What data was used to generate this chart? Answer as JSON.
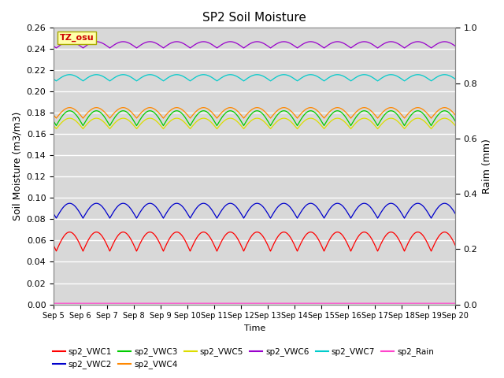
{
  "title": "SP2 Soil Moisture",
  "xlabel": "Time",
  "ylabel_left": "Soil Moisture (m3/m3)",
  "ylabel_right": "Raim (mm)",
  "xlim_days": [
    0,
    15
  ],
  "ylim_left": [
    0.0,
    0.26
  ],
  "ylim_right": [
    0.0,
    1.0
  ],
  "xtick_labels": [
    "Sep 5",
    "Sep 6",
    "Sep 7",
    "Sep 8",
    "Sep 9",
    "Sep 10",
    "Sep 11",
    "Sep 12",
    "Sep 13",
    "Sep 14",
    "Sep 15",
    "Sep 16",
    "Sep 17",
    "Sep 18",
    "Sep 19",
    "Sep 20"
  ],
  "yticks_left": [
    0.0,
    0.02,
    0.04,
    0.06,
    0.08,
    0.1,
    0.12,
    0.14,
    0.16,
    0.18,
    0.2,
    0.22,
    0.24,
    0.26
  ],
  "yticks_right": [
    0.0,
    0.2,
    0.4,
    0.6,
    0.8,
    1.0
  ],
  "background_color": "#d8d8d8",
  "grid_color": "#ffffff",
  "series": {
    "sp2_VWC1": {
      "color": "#ff0000",
      "base": 0.059,
      "amp": 0.009,
      "freq": 1.0,
      "phase": 0.3
    },
    "sp2_VWC2": {
      "color": "#0000cc",
      "base": 0.088,
      "amp": 0.007,
      "freq": 1.0,
      "phase": 0.3
    },
    "sp2_VWC3": {
      "color": "#00cc00",
      "base": 0.175,
      "amp": 0.007,
      "freq": 1.0,
      "phase": 0.3
    },
    "sp2_VWC4": {
      "color": "#ff8800",
      "base": 0.18,
      "amp": 0.005,
      "freq": 1.0,
      "phase": 0.3
    },
    "sp2_VWC5": {
      "color": "#dddd00",
      "base": 0.17,
      "amp": 0.005,
      "freq": 1.0,
      "phase": 0.3
    },
    "sp2_VWC6": {
      "color": "#9900cc",
      "base": 0.244,
      "amp": 0.003,
      "freq": 1.0,
      "phase": 0.3
    },
    "sp2_VWC7": {
      "color": "#00cccc",
      "base": 0.213,
      "amp": 0.003,
      "freq": 1.0,
      "phase": 0.3
    },
    "sp2_Rain": {
      "color": "#ff44cc",
      "base": 0.001,
      "amp": 0.0,
      "freq": 1.0,
      "phase": 0.0
    }
  },
  "legend_entries": [
    "sp2_VWC1",
    "sp2_VWC2",
    "sp2_VWC3",
    "sp2_VWC4",
    "sp2_VWC5",
    "sp2_VWC6",
    "sp2_VWC7",
    "sp2_Rain"
  ],
  "tz_label": "TZ_osu",
  "tz_box_color": "#ffffaa",
  "tz_text_color": "#cc0000",
  "tz_edge_color": "#aaaa00"
}
